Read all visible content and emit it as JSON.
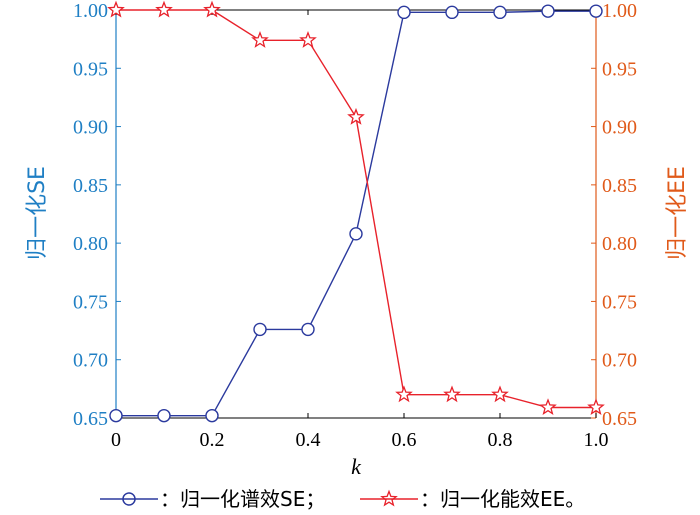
{
  "chart_data": {
    "type": "line",
    "xlabel": "k",
    "ylabel_left": "归一化SE",
    "ylabel_right": "归一化EE",
    "xlim": [
      0,
      1.0
    ],
    "ylim": [
      0.65,
      1.0
    ],
    "x_ticks": [
      "0",
      "0.2",
      "0.4",
      "0.6",
      "0.8",
      "1.0"
    ],
    "y_ticks": [
      "0.65",
      "0.70",
      "0.75",
      "0.80",
      "0.85",
      "0.90",
      "0.95",
      "1.00"
    ],
    "x": [
      0,
      0.1,
      0.2,
      0.3,
      0.4,
      0.5,
      0.6,
      0.7,
      0.8,
      0.9,
      1.0
    ],
    "series": [
      {
        "name": "：归一化谱效SE；",
        "marker": "circle",
        "color": "#2b3a9e",
        "axis": "left",
        "values": [
          0.652,
          0.652,
          0.652,
          0.726,
          0.726,
          0.808,
          0.998,
          0.998,
          0.998,
          0.999,
          0.999
        ]
      },
      {
        "name": "：归一化能效EE。",
        "marker": "star",
        "color": "#e8222b",
        "axis": "right",
        "values": [
          1.0,
          1.0,
          1.0,
          0.974,
          0.974,
          0.908,
          0.67,
          0.67,
          0.67,
          0.659,
          0.659
        ]
      }
    ],
    "legend_position": "bottom"
  },
  "colors": {
    "left_axis": "#1f7fc4",
    "right_axis": "#e05a1a"
  }
}
